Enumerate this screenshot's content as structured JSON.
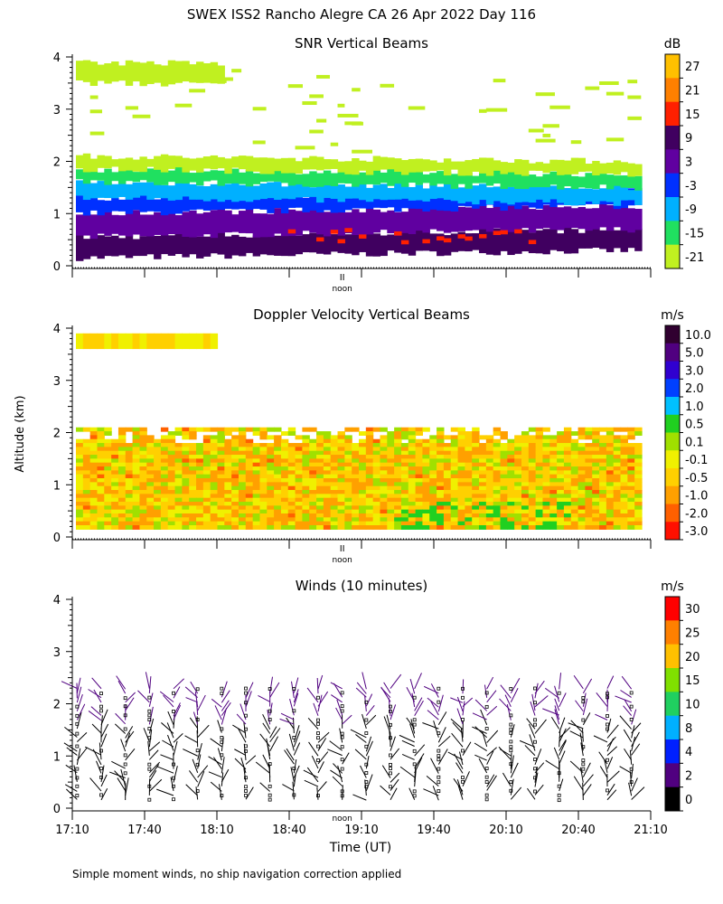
{
  "figure": {
    "title": "SWEX ISS2 Rancho Alegre CA  26 Apr 2022 Day 116",
    "ylabel": "Altitude (km)",
    "xlabel": "Time (UT)",
    "footnote": "Simple moment winds, no ship navigation correction applied",
    "noon_label": "noon",
    "noon_marker": "II"
  },
  "chart_data": [
    {
      "type": "heatmap",
      "title": "SNR Vertical Beams",
      "ylabel": "Altitude (km)",
      "ylim": [
        0,
        4
      ],
      "yticks": [
        "0",
        "1",
        "2",
        "3",
        "4"
      ],
      "xlim": [
        "17:10",
        "21:10"
      ],
      "colorbar": {
        "unit": "dB",
        "labels": [
          "27",
          "21",
          "15",
          "9",
          "3",
          "-3",
          "-9",
          "-15",
          "-21"
        ],
        "colors": [
          "#ffc000",
          "#ff8000",
          "#ff2000",
          "#400060",
          "#6000a0",
          "#0030ff",
          "#00b0ff",
          "#20e060",
          "#c0f020"
        ]
      },
      "layers": [
        {
          "from_km": 0.15,
          "to_km": 0.55,
          "level": "9"
        },
        {
          "from_km": 0.55,
          "to_km": 1.0,
          "level": "3"
        },
        {
          "from_km": 1.0,
          "to_km": 1.3,
          "level": "-3"
        },
        {
          "from_km": 1.3,
          "to_km": 1.6,
          "level": "-9"
        },
        {
          "from_km": 1.6,
          "to_km": 1.85,
          "level": "-15"
        },
        {
          "from_km": 1.85,
          "to_km": 2.1,
          "level": "-21"
        },
        {
          "from_km": 3.5,
          "to_km": 3.9,
          "level": "-21"
        }
      ]
    },
    {
      "type": "heatmap",
      "title": "Doppler Velocity Vertical Beams",
      "ylim": [
        0,
        4
      ],
      "yticks": [
        "0",
        "1",
        "2",
        "3",
        "4"
      ],
      "xlim": [
        "17:10",
        "21:10"
      ],
      "colorbar": {
        "unit": "m/s",
        "labels": [
          "10.0",
          "5.0",
          "3.0",
          "2.0",
          "1.0",
          "0.5",
          "0.1",
          "-0.1",
          "-0.5",
          "-1.0",
          "-2.0",
          "-3.0"
        ],
        "colors": [
          "#300030",
          "#500080",
          "#3000d0",
          "#0040ff",
          "#00c0ff",
          "#20d020",
          "#a0e000",
          "#f0f000",
          "#ffd000",
          "#ffa000",
          "#ff6000",
          "#ff1000"
        ]
      },
      "dominant_range": [
        "-0.5",
        "-0.1"
      ],
      "coverage_top_km": 2.1
    },
    {
      "type": "wind_barbs",
      "title": "Winds (10 minutes)",
      "ylim": [
        0,
        4
      ],
      "yticks": [
        "0",
        "1",
        "2",
        "3",
        "4"
      ],
      "xticks": [
        "17:10",
        "17:40",
        "18:10",
        "18:40",
        "19:10",
        "19:40",
        "20:10",
        "20:40",
        "21:10"
      ],
      "xlim": [
        "17:10",
        "21:10"
      ],
      "colorbar": {
        "unit": "m/s",
        "labels": [
          "30",
          "25",
          "20",
          "15",
          "10",
          "8",
          "4",
          "2",
          "0"
        ],
        "colors": [
          "#ff0000",
          "#ff8000",
          "#ffc000",
          "#80e000",
          "#20d060",
          "#00b0ff",
          "#0020ff",
          "#500080",
          "#000000"
        ]
      },
      "profile_times": [
        "17:12",
        "17:22",
        "17:32",
        "17:42",
        "17:52",
        "18:02",
        "18:12",
        "18:22",
        "18:32",
        "18:42",
        "18:52",
        "19:02",
        "19:12",
        "19:22",
        "19:32",
        "19:42",
        "19:52",
        "20:02",
        "20:12",
        "20:22",
        "20:32",
        "20:42",
        "20:52",
        "21:02"
      ]
    }
  ]
}
